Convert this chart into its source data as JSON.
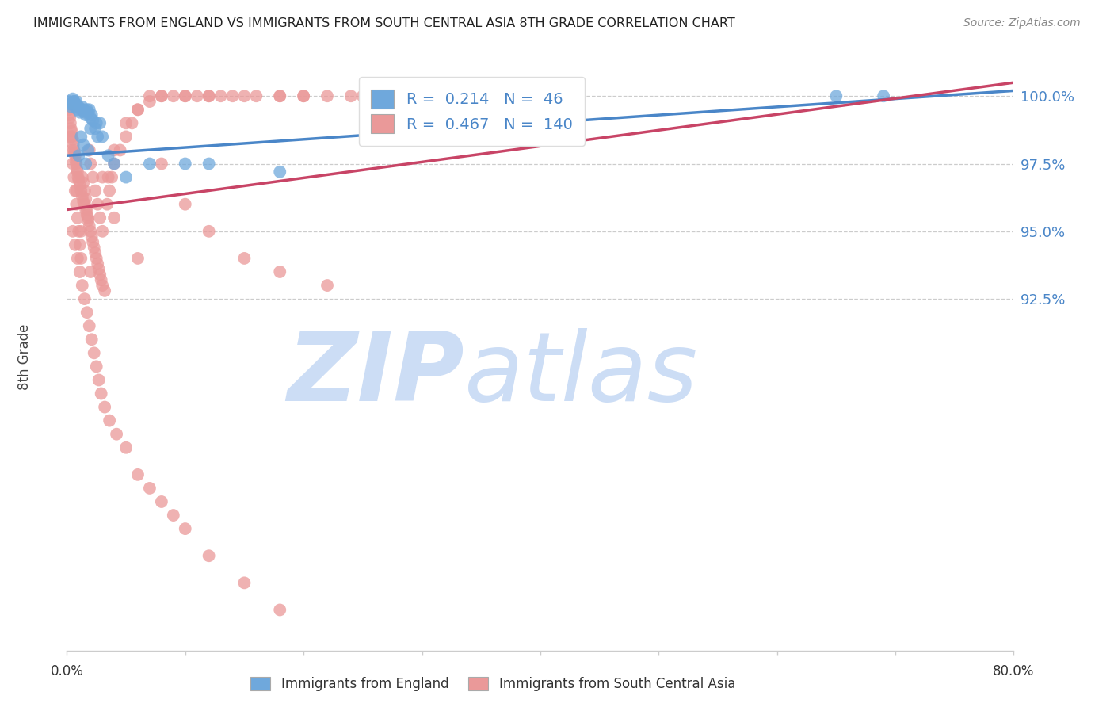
{
  "title": "IMMIGRANTS FROM ENGLAND VS IMMIGRANTS FROM SOUTH CENTRAL ASIA 8TH GRADE CORRELATION CHART",
  "source": "Source: ZipAtlas.com",
  "ylabel": "8th Grade",
  "xlim": [
    0.0,
    80.0
  ],
  "ylim": [
    79.5,
    101.2
  ],
  "ytick_vals": [
    92.5,
    95.0,
    97.5,
    100.0
  ],
  "ytick_labels": [
    "92.5%",
    "95.0%",
    "97.5%",
    "100.0%"
  ],
  "legend_england": "Immigrants from England",
  "legend_asia": "Immigrants from South Central Asia",
  "R_england": 0.214,
  "N_england": 46,
  "R_asia": 0.467,
  "N_asia": 140,
  "color_england": "#6fa8dc",
  "color_asia": "#ea9999",
  "color_england_line": "#4a86c8",
  "color_asia_line": "#c84466",
  "watermark_zip": "ZIP",
  "watermark_atlas": "atlas",
  "watermark_color_zip": "#ccddf5",
  "watermark_color_atlas": "#ccddf5",
  "eng_line_x0": 0,
  "eng_line_y0": 97.8,
  "eng_line_x1": 80,
  "eng_line_y1": 100.2,
  "asia_line_x0": 0,
  "asia_line_y0": 95.8,
  "asia_line_x1": 80,
  "asia_line_y1": 100.5,
  "england_x": [
    0.2,
    0.3,
    0.4,
    0.5,
    0.6,
    0.7,
    0.8,
    0.9,
    1.0,
    1.1,
    1.2,
    1.3,
    1.4,
    1.5,
    1.6,
    1.7,
    1.8,
    1.9,
    2.0,
    2.1,
    2.2,
    2.4,
    2.6,
    2.8,
    0.5,
    0.6,
    0.7,
    0.8,
    0.9,
    1.0,
    1.2,
    1.4,
    1.6,
    1.8,
    2.0,
    2.5,
    3.0,
    3.5,
    4.0,
    5.0,
    7.0,
    10.0,
    12.0,
    18.0,
    65.0,
    69.0
  ],
  "england_y": [
    99.8,
    99.7,
    99.6,
    99.7,
    99.8,
    99.6,
    99.7,
    99.5,
    99.6,
    99.4,
    99.5,
    99.6,
    99.5,
    99.4,
    99.3,
    99.5,
    99.4,
    99.5,
    99.2,
    99.3,
    99.1,
    98.8,
    98.5,
    99.0,
    99.9,
    99.8,
    99.7,
    99.8,
    99.6,
    97.8,
    98.5,
    98.2,
    97.5,
    98.0,
    98.8,
    99.0,
    98.5,
    97.8,
    97.5,
    97.0,
    97.5,
    97.5,
    97.5,
    97.2,
    100.0,
    100.0
  ],
  "asia_x": [
    0.15,
    0.2,
    0.25,
    0.3,
    0.35,
    0.4,
    0.45,
    0.5,
    0.55,
    0.6,
    0.65,
    0.7,
    0.75,
    0.8,
    0.85,
    0.9,
    0.95,
    1.0,
    1.1,
    1.2,
    1.3,
    1.4,
    1.5,
    1.6,
    1.7,
    1.8,
    1.9,
    2.0,
    2.1,
    2.2,
    2.3,
    2.4,
    2.5,
    2.6,
    2.7,
    2.8,
    2.9,
    3.0,
    3.2,
    3.4,
    3.6,
    3.8,
    4.0,
    4.5,
    5.0,
    5.5,
    6.0,
    7.0,
    8.0,
    9.0,
    10.0,
    11.0,
    12.0,
    13.0,
    15.0,
    18.0,
    20.0,
    25.0,
    30.0,
    35.0,
    0.3,
    0.4,
    0.5,
    0.6,
    0.7,
    0.8,
    0.9,
    1.0,
    1.1,
    1.2,
    1.3,
    1.4,
    1.5,
    1.6,
    1.7,
    1.8,
    1.9,
    2.0,
    2.2,
    2.4,
    2.6,
    2.8,
    3.0,
    3.5,
    4.0,
    5.0,
    6.0,
    7.0,
    8.0,
    10.0,
    12.0,
    14.0,
    16.0,
    18.0,
    20.0,
    22.0,
    24.0,
    26.0,
    28.0,
    30.0,
    0.5,
    0.7,
    0.9,
    1.1,
    1.3,
    1.5,
    1.7,
    1.9,
    2.1,
    2.3,
    2.5,
    2.7,
    2.9,
    3.2,
    3.6,
    4.2,
    5.0,
    6.0,
    7.0,
    8.0,
    9.0,
    10.0,
    12.0,
    15.0,
    18.0,
    0.8,
    1.2,
    2.0,
    3.0,
    4.0,
    6.0,
    8.0,
    10.0,
    12.0,
    15.0,
    18.0,
    22.0,
    28.0,
    35.0,
    40.0
  ],
  "asia_y": [
    99.5,
    99.3,
    99.2,
    99.0,
    98.8,
    98.7,
    98.5,
    98.4,
    98.2,
    98.0,
    97.9,
    97.8,
    97.6,
    97.5,
    97.3,
    97.2,
    97.0,
    96.9,
    96.7,
    96.5,
    96.3,
    96.1,
    96.0,
    95.8,
    95.6,
    95.4,
    95.2,
    95.0,
    94.8,
    94.6,
    94.4,
    94.2,
    94.0,
    93.8,
    93.6,
    93.4,
    93.2,
    93.0,
    92.8,
    96.0,
    96.5,
    97.0,
    97.5,
    98.0,
    98.5,
    99.0,
    99.5,
    99.8,
    100.0,
    100.0,
    100.0,
    100.0,
    100.0,
    100.0,
    100.0,
    100.0,
    100.0,
    100.0,
    100.0,
    100.0,
    98.5,
    98.0,
    97.5,
    97.0,
    96.5,
    96.0,
    95.5,
    95.0,
    94.5,
    94.0,
    97.0,
    96.8,
    96.5,
    96.2,
    95.8,
    95.5,
    98.0,
    97.5,
    97.0,
    96.5,
    96.0,
    95.5,
    95.0,
    97.0,
    98.0,
    99.0,
    99.5,
    100.0,
    100.0,
    100.0,
    100.0,
    100.0,
    100.0,
    100.0,
    100.0,
    100.0,
    100.0,
    100.0,
    100.0,
    100.0,
    95.0,
    94.5,
    94.0,
    93.5,
    93.0,
    92.5,
    92.0,
    91.5,
    91.0,
    90.5,
    90.0,
    89.5,
    89.0,
    88.5,
    88.0,
    87.5,
    87.0,
    86.0,
    85.5,
    85.0,
    84.5,
    84.0,
    83.0,
    82.0,
    81.0,
    96.5,
    95.0,
    93.5,
    97.0,
    95.5,
    94.0,
    97.5,
    96.0,
    95.0,
    94.0,
    93.5,
    93.0,
    98.5,
    99.0,
    99.5
  ]
}
